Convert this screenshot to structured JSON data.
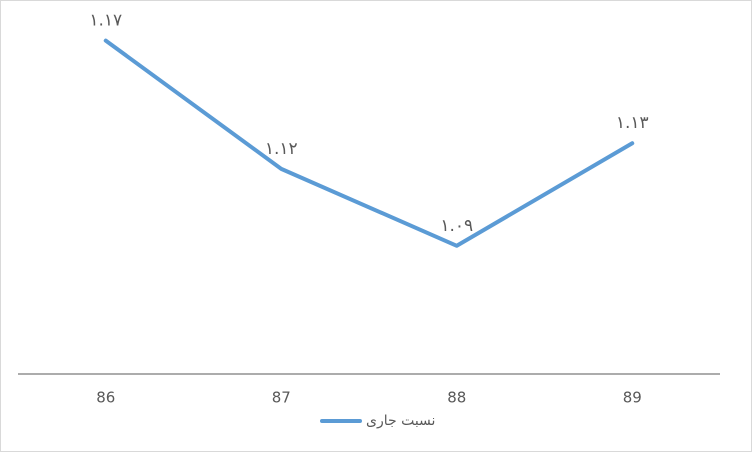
{
  "chart_data": {
    "type": "line",
    "categories": [
      "86",
      "87",
      "88",
      "89"
    ],
    "series": [
      {
        "name": "نسبت جاری",
        "color": "#5b9bd5",
        "values": [
          1.17,
          1.12,
          1.09,
          1.13
        ],
        "value_labels": [
          "۱.۱۷",
          "۱.۱۲",
          "۱.۰۹",
          "۱.۱۳"
        ]
      }
    ],
    "ylim": [
      1.04,
      1.18
    ],
    "legend": "bottom"
  }
}
